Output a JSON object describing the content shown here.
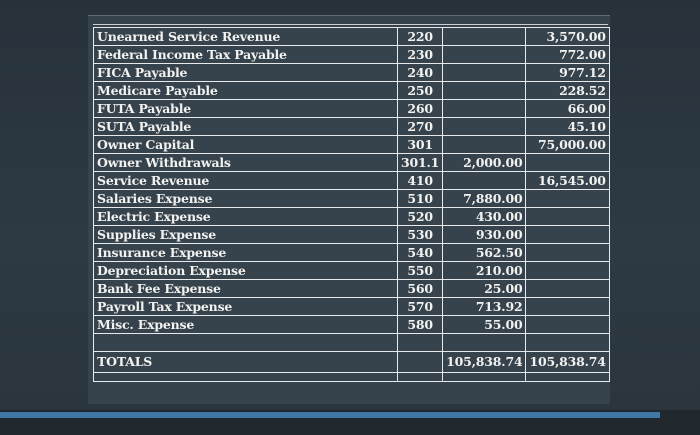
{
  "accounts": [
    {
      "name": "Unearned Service Revenue",
      "number": "220",
      "debit": "",
      "credit": "3,570.00"
    },
    {
      "name": "Federal Income Tax Payable",
      "number": "230",
      "debit": "",
      "credit": "772.00"
    },
    {
      "name": "FICA Payable",
      "number": "240",
      "debit": "",
      "credit": "977.12"
    },
    {
      "name": "Medicare Payable",
      "number": "250",
      "debit": "",
      "credit": "228.52"
    },
    {
      "name": "FUTA Payable",
      "number": "260",
      "debit": "",
      "credit": "66.00"
    },
    {
      "name": "SUTA Payable",
      "number": "270",
      "debit": "",
      "credit": "45.10"
    },
    {
      "name": "Owner Capital",
      "number": "301",
      "debit": "",
      "credit": "75,000.00"
    },
    {
      "name": "Owner Withdrawals",
      "number": "301.1",
      "debit": "2,000.00",
      "credit": ""
    },
    {
      "name": "Service Revenue",
      "number": "410",
      "debit": "",
      "credit": "16,545.00"
    },
    {
      "name": "Salaries Expense",
      "number": "510",
      "debit": "7,880.00",
      "credit": ""
    },
    {
      "name": "Electric Expense",
      "number": "520",
      "debit": "430.00",
      "credit": ""
    },
    {
      "name": "Supplies Expense",
      "number": "530",
      "debit": "930.00",
      "credit": ""
    },
    {
      "name": "Insurance Expense",
      "number": "540",
      "debit": "562.50",
      "credit": ""
    },
    {
      "name": "Depreciation Expense",
      "number": "550",
      "debit": "210.00",
      "credit": ""
    },
    {
      "name": "Bank Fee Expense",
      "number": "560",
      "debit": "25.00",
      "credit": ""
    },
    {
      "name": "Payroll Tax Expense",
      "number": "570",
      "debit": "713.92",
      "credit": ""
    },
    {
      "name": "Misc. Expense",
      "number": "580",
      "debit": "55.00",
      "credit": ""
    }
  ],
  "totals": {
    "label": "TOTALS",
    "debit": "105,838.74",
    "credit": "105,838.74"
  }
}
